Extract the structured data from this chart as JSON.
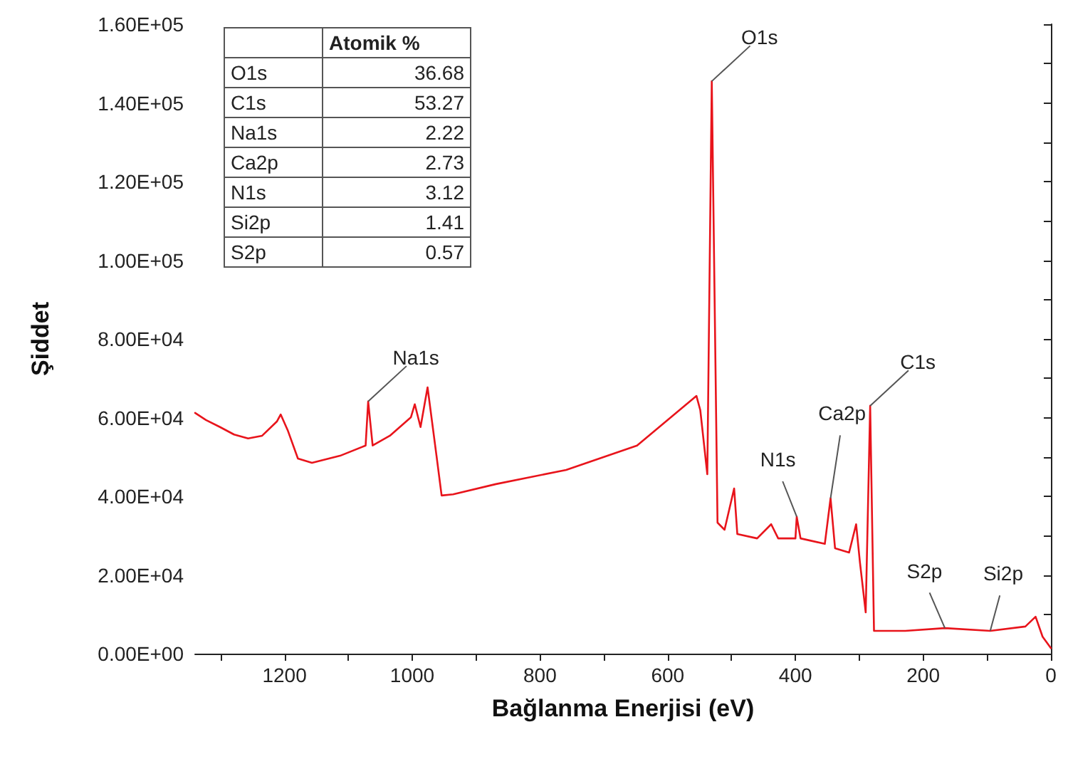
{
  "chart_data": {
    "type": "line",
    "xlabel": "Bağlanma Enerjisi (eV)",
    "ylabel": "Şiddet",
    "xlim": [
      1340,
      0
    ],
    "xticks": [
      {
        "value": 1300,
        "label": null
      },
      1200,
      {
        "value": 1100,
        "label": null
      },
      1000,
      {
        "value": 900,
        "label": null
      },
      800,
      {
        "value": 700,
        "label": null
      },
      600,
      {
        "value": 500,
        "label": null
      },
      400,
      {
        "value": 300,
        "label": null
      },
      200,
      {
        "value": 100,
        "label": null
      },
      0
    ],
    "ylim": [
      0,
      160000
    ],
    "yticks": [
      {
        "value": 0,
        "label": "0.00E+00"
      },
      {
        "value": 10000,
        "label": null
      },
      {
        "value": 20000,
        "label": "2.00E+04"
      },
      {
        "value": 30000,
        "label": null
      },
      {
        "value": 40000,
        "label": "4.00E+04"
      },
      {
        "value": 50000,
        "label": null
      },
      {
        "value": 60000,
        "label": "6.00E+04"
      },
      {
        "value": 70000,
        "label": null
      },
      {
        "value": 80000,
        "label": "8.00E+04"
      },
      {
        "value": 90000,
        "label": null
      },
      {
        "value": 100000,
        "label": "1.00E+05"
      },
      {
        "value": 110000,
        "label": null
      },
      {
        "value": 120000,
        "label": "1.20E+05"
      },
      {
        "value": 130000,
        "label": null
      },
      {
        "value": 140000,
        "label": "1.40E+05"
      },
      {
        "value": 150000,
        "label": null
      },
      {
        "value": 160000,
        "label": "1.60E+05"
      }
    ],
    "x": [
      1340,
      1323,
      1301,
      1279,
      1257,
      1235,
      1212,
      1206,
      1195,
      1179,
      1157,
      1113,
      1073,
      1069,
      1062,
      1035,
      1002,
      996,
      987,
      976,
      962,
      954,
      936,
      869,
      759,
      648,
      555,
      549,
      538,
      531,
      522,
      511,
      496,
      491,
      460,
      438,
      427,
      400,
      398,
      392,
      354,
      345,
      338,
      316,
      305,
      299,
      290,
      283,
      277,
      228,
      166,
      95,
      40,
      24,
      13,
      0
    ],
    "series": [
      {
        "color": "#e8141b",
        "values": [
          61200,
          59400,
          57600,
          55700,
          54700,
          55400,
          59000,
          60800,
          56800,
          49600,
          48500,
          50300,
          52900,
          64100,
          52900,
          55400,
          60100,
          63400,
          57600,
          67700,
          50300,
          40200,
          40500,
          43100,
          46700,
          52900,
          65500,
          61900,
          45600,
          145500,
          33300,
          31500,
          42000,
          30400,
          29300,
          32900,
          29300,
          29300,
          34800,
          29300,
          27900,
          39500,
          26800,
          25700,
          32900,
          23200,
          10500,
          63000,
          5800,
          5800,
          6500,
          5800,
          6900,
          9400,
          4300,
          1400
        ]
      }
    ],
    "annotations": [
      {
        "text": "O1s",
        "x": 531,
        "y": 145500
      },
      {
        "text": "C1s",
        "x": 283,
        "y": 63000
      },
      {
        "text": "Na1s",
        "x": 1069,
        "y": 64100
      },
      {
        "text": "N1s",
        "x": 398,
        "y": 34800
      },
      {
        "text": "Ca2p",
        "x": 345,
        "y": 39500
      },
      {
        "text": "S2p",
        "x": 166,
        "y": 6500
      },
      {
        "text": "Si2p",
        "x": 95,
        "y": 5800
      },
      "Atomik %",
      "O1s",
      "36.68",
      "C1s",
      "53.27",
      "Na1s",
      "2.22",
      "Ca2p",
      "2.73",
      "N1s",
      "3.12",
      "Si2p",
      "1.41",
      "S2p",
      "0.57"
    ],
    "grid": false,
    "marker": "none",
    "line_style": "solid"
  }
}
